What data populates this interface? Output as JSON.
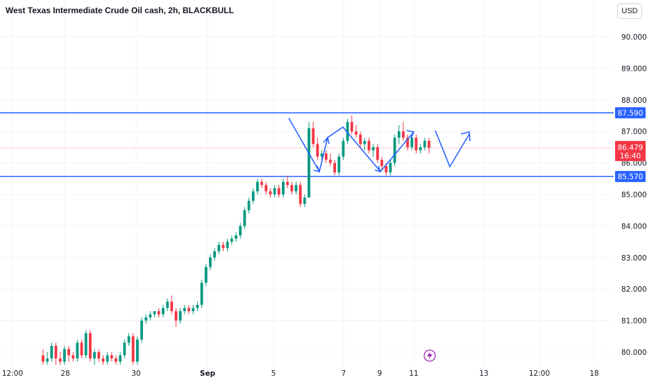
{
  "header": {
    "title": "West Texas Intermediate Crude Oil cash, 2h, BLACKBULL",
    "currency": "USD"
  },
  "colors": {
    "up": "#089981",
    "down": "#f23645",
    "level_line": "#2962ff",
    "drawing": "#2962ff",
    "grid": "#f0f3fa",
    "axis_text": "#131722"
  },
  "icons": {
    "flash": "lightning-icon"
  },
  "chart_data": {
    "type": "candlestick",
    "title": "West Texas Intermediate Crude Oil cash, 2h, BLACKBULL",
    "y_ticks": [
      "80.000",
      "81.000",
      "82.000",
      "83.000",
      "84.000",
      "85.000",
      "86.000",
      "87.000",
      "88.000",
      "89.000",
      "90.000"
    ],
    "ylim": [
      79.6,
      91.2
    ],
    "x_ticks": [
      "12:00",
      "28",
      "30",
      "Sep",
      "5",
      "7",
      "9",
      "11",
      "13",
      "12:00",
      "18"
    ],
    "grid": true,
    "levels": [
      {
        "value": 87.59,
        "label": "87.590"
      },
      {
        "value": 85.57,
        "label": "85.570"
      }
    ],
    "current_price": {
      "value": 86.479,
      "label": "86.479",
      "countdown": "16:40"
    },
    "ohlc": [
      [
        79.9,
        80.1,
        79.6,
        79.7
      ],
      [
        79.7,
        80.0,
        79.6,
        79.8
      ],
      [
        79.8,
        80.3,
        79.7,
        80.2
      ],
      [
        80.2,
        80.3,
        79.6,
        79.8
      ],
      [
        79.8,
        80.0,
        79.6,
        79.7
      ],
      [
        79.7,
        80.2,
        79.6,
        80.1
      ],
      [
        80.1,
        80.2,
        79.7,
        79.9
      ],
      [
        79.9,
        80.0,
        79.7,
        79.8
      ],
      [
        79.8,
        80.4,
        79.7,
        80.3
      ],
      [
        80.3,
        80.4,
        79.8,
        79.9
      ],
      [
        79.9,
        80.7,
        79.8,
        80.6
      ],
      [
        80.6,
        80.7,
        79.7,
        79.8
      ],
      [
        79.8,
        80.1,
        79.6,
        80.0
      ],
      [
        80.0,
        80.1,
        79.7,
        79.8
      ],
      [
        79.8,
        79.9,
        79.6,
        79.7
      ],
      [
        79.7,
        80.0,
        79.6,
        79.9
      ],
      [
        79.9,
        80.0,
        79.7,
        79.8
      ],
      [
        79.8,
        79.9,
        79.6,
        79.7
      ],
      [
        79.7,
        80.0,
        79.6,
        79.9
      ],
      [
        79.9,
        80.4,
        79.8,
        80.3
      ],
      [
        80.3,
        80.6,
        80.2,
        80.5
      ],
      [
        80.5,
        80.6,
        79.6,
        79.7
      ],
      [
        79.7,
        80.5,
        79.6,
        80.4
      ],
      [
        80.4,
        81.1,
        80.3,
        81.0
      ],
      [
        81.0,
        81.2,
        80.9,
        81.1
      ],
      [
        81.1,
        81.3,
        81.0,
        81.2
      ],
      [
        81.2,
        81.3,
        81.1,
        81.3
      ],
      [
        81.3,
        81.4,
        81.1,
        81.2
      ],
      [
        81.2,
        81.5,
        81.1,
        81.4
      ],
      [
        81.4,
        81.7,
        81.3,
        81.6
      ],
      [
        81.6,
        81.8,
        81.2,
        81.3
      ],
      [
        81.3,
        81.4,
        80.8,
        81.0
      ],
      [
        81.0,
        81.4,
        80.9,
        81.3
      ],
      [
        81.3,
        81.5,
        81.2,
        81.4
      ],
      [
        81.4,
        81.5,
        81.2,
        81.3
      ],
      [
        81.3,
        81.5,
        81.2,
        81.4
      ],
      [
        81.4,
        81.6,
        81.3,
        81.5
      ],
      [
        81.5,
        82.3,
        81.4,
        82.2
      ],
      [
        82.2,
        82.8,
        82.1,
        82.7
      ],
      [
        82.7,
        83.1,
        82.6,
        83.0
      ],
      [
        83.0,
        83.3,
        82.9,
        83.2
      ],
      [
        83.2,
        83.5,
        83.1,
        83.4
      ],
      [
        83.4,
        83.5,
        83.2,
        83.3
      ],
      [
        83.3,
        83.6,
        83.2,
        83.5
      ],
      [
        83.5,
        83.7,
        83.4,
        83.6
      ],
      [
        83.6,
        83.8,
        83.5,
        83.7
      ],
      [
        83.7,
        84.1,
        83.6,
        84.0
      ],
      [
        84.0,
        84.6,
        83.9,
        84.5
      ],
      [
        84.5,
        84.9,
        84.4,
        84.8
      ],
      [
        84.8,
        85.2,
        84.7,
        85.1
      ],
      [
        85.1,
        85.5,
        85.0,
        85.4
      ],
      [
        85.4,
        85.5,
        85.2,
        85.3
      ],
      [
        85.3,
        85.4,
        85.0,
        85.1
      ],
      [
        85.1,
        85.2,
        84.9,
        85.0
      ],
      [
        85.0,
        85.3,
        84.9,
        85.2
      ],
      [
        85.2,
        85.3,
        84.9,
        85.0
      ],
      [
        85.0,
        85.5,
        84.9,
        85.4
      ],
      [
        85.4,
        85.6,
        85.2,
        85.3
      ],
      [
        85.3,
        85.4,
        85.0,
        85.1
      ],
      [
        85.1,
        85.4,
        85.0,
        85.3
      ],
      [
        85.3,
        85.4,
        84.6,
        84.7
      ],
      [
        84.7,
        85.0,
        84.6,
        84.9
      ],
      [
        84.9,
        87.3,
        84.9,
        87.1
      ],
      [
        87.1,
        87.3,
        86.5,
        86.6
      ],
      [
        86.6,
        86.8,
        86.1,
        86.2
      ],
      [
        86.2,
        86.4,
        86.1,
        86.3
      ],
      [
        86.3,
        86.4,
        86.0,
        86.1
      ],
      [
        86.1,
        86.3,
        85.9,
        86.0
      ],
      [
        86.0,
        86.1,
        85.6,
        85.7
      ],
      [
        85.7,
        86.3,
        85.6,
        86.2
      ],
      [
        86.2,
        86.8,
        86.1,
        86.7
      ],
      [
        86.7,
        87.4,
        86.6,
        87.3
      ],
      [
        87.3,
        87.5,
        86.9,
        87.0
      ],
      [
        87.0,
        87.2,
        86.8,
        86.9
      ],
      [
        86.9,
        87.0,
        86.5,
        86.6
      ],
      [
        86.6,
        86.8,
        86.4,
        86.7
      ],
      [
        86.7,
        86.8,
        86.3,
        86.4
      ],
      [
        86.4,
        86.6,
        86.2,
        86.5
      ],
      [
        86.5,
        86.6,
        86.0,
        86.1
      ],
      [
        86.1,
        86.2,
        85.8,
        85.9
      ],
      [
        85.9,
        86.0,
        85.6,
        85.7
      ],
      [
        85.7,
        86.1,
        85.6,
        86.0
      ],
      [
        86.0,
        86.9,
        85.9,
        86.8
      ],
      [
        86.8,
        87.2,
        86.6,
        87.0
      ],
      [
        87.0,
        87.3,
        86.7,
        86.8
      ],
      [
        86.8,
        86.9,
        86.4,
        86.5
      ],
      [
        86.5,
        86.9,
        86.4,
        86.8
      ],
      [
        86.8,
        86.9,
        86.3,
        86.4
      ],
      [
        86.4,
        86.6,
        86.3,
        86.5
      ],
      [
        86.5,
        86.8,
        86.4,
        86.7
      ],
      [
        86.7,
        86.8,
        86.3,
        86.479
      ]
    ]
  }
}
